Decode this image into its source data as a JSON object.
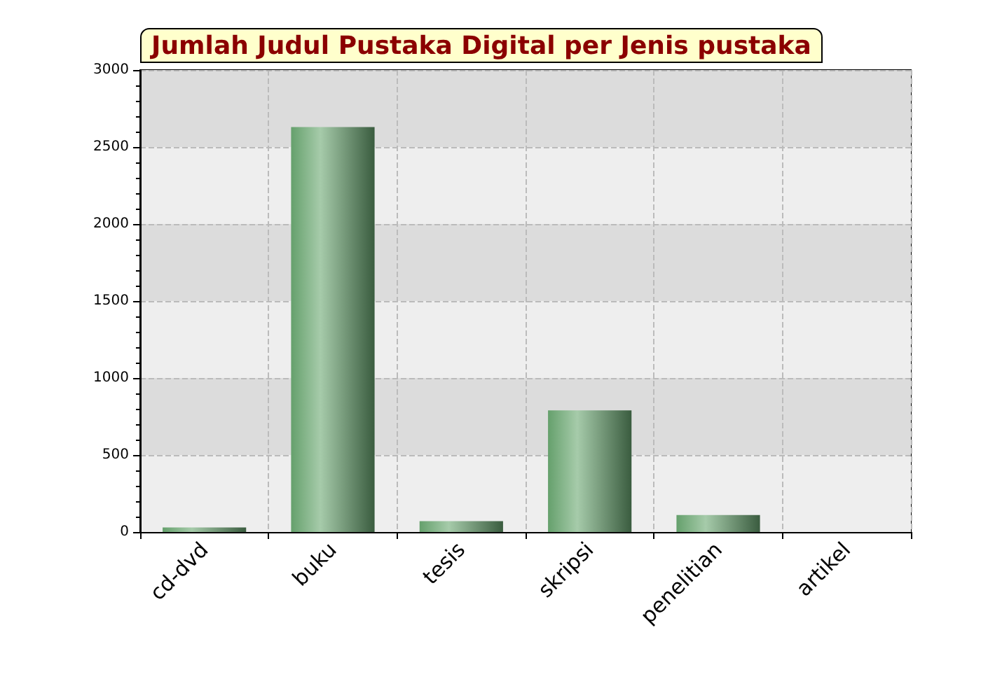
{
  "chart_data": {
    "type": "bar",
    "title": "Jumlah Judul Pustaka Digital per Jenis pustaka",
    "categories": [
      "cd-dvd",
      "buku",
      "tesis",
      "skripsi",
      "penelitian",
      "artikel"
    ],
    "values": [
      30,
      2630,
      70,
      790,
      110,
      0
    ],
    "color": "#6aa872",
    "ylim": [
      0,
      3000
    ],
    "yticks": [
      0,
      500,
      1000,
      1500,
      2000,
      2500,
      3000
    ],
    "grid": true
  }
}
